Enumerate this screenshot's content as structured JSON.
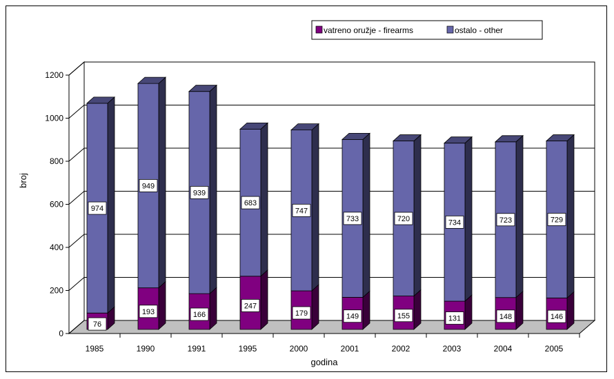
{
  "chart_data": {
    "type": "bar",
    "stacked": true,
    "three_d": true,
    "categories": [
      "1985",
      "1990",
      "1991",
      "1995",
      "2000",
      "2001",
      "2002",
      "2003",
      "2004",
      "2005"
    ],
    "series": [
      {
        "name": "vatreno oružje - firearms",
        "color": "#800080",
        "values": [
          76,
          193,
          166,
          247,
          179,
          149,
          155,
          131,
          148,
          146
        ]
      },
      {
        "name": "ostalo - other",
        "color": "#6666aa",
        "values": [
          974,
          949,
          939,
          683,
          747,
          733,
          720,
          734,
          723,
          729
        ]
      }
    ],
    "xlabel": "godina",
    "ylabel": "broj",
    "ylim": [
      0,
      1200
    ],
    "yticks": [
      "0",
      "200",
      "400",
      "600",
      "800",
      "1000",
      "1200"
    ],
    "grid": true,
    "legend_position": "top-right"
  }
}
